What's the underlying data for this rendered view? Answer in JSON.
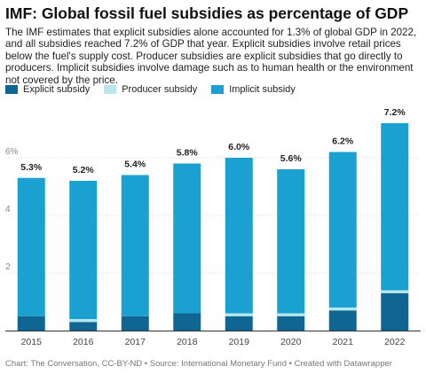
{
  "header": {
    "title": "IMF: Global fossil fuel subsidies as percentage of GDP",
    "subtitle": "The IMF estimates that explicit subsidies alone accounted for 1.3% of global GDP in 2022, and all subsidies reached 7.2% of GDP that year. Explicit subsidies involve retail prices below the fuel's supply cost. Producer subsidies are explicit subsidies that go directly to producers. Implicit subsidies involve damage such as to human health or the environment not covered by the price."
  },
  "footer": {
    "text": "Chart: The Conversation, CC-BY-ND • Source: International Monetary Fund • Created with Datawrapper"
  },
  "colors": {
    "explicit": "#0f6692",
    "producer": "#b7e6eb",
    "implicit": "#1aa1d1"
  },
  "chart_data": {
    "type": "bar",
    "stacked": true,
    "categories": [
      "2015",
      "2016",
      "2017",
      "2018",
      "2019",
      "2020",
      "2021",
      "2022"
    ],
    "series": [
      {
        "name": "Explicit subsidy",
        "values": [
          0.5,
          0.3,
          0.5,
          0.6,
          0.5,
          0.5,
          0.7,
          1.3
        ]
      },
      {
        "name": "Producer subsidy",
        "values": [
          0.0,
          0.1,
          0.0,
          0.0,
          0.1,
          0.1,
          0.1,
          0.1
        ]
      },
      {
        "name": "Implicit subsidy",
        "values": [
          4.8,
          4.8,
          4.9,
          5.2,
          5.4,
          5.0,
          5.4,
          5.8
        ]
      }
    ],
    "totals": [
      "5.3%",
      "5.2%",
      "5.4%",
      "5.8%",
      "6.0%",
      "5.6%",
      "6.2%",
      "7.2%"
    ],
    "totals_values": [
      5.3,
      5.2,
      5.4,
      5.8,
      6.0,
      5.6,
      6.2,
      7.2
    ],
    "y_ticks": [
      "2",
      "4",
      "6%"
    ],
    "y_tick_values": [
      2,
      4,
      6
    ],
    "ylim": [
      0,
      7.2
    ],
    "grid": true,
    "legend": "top-left"
  }
}
